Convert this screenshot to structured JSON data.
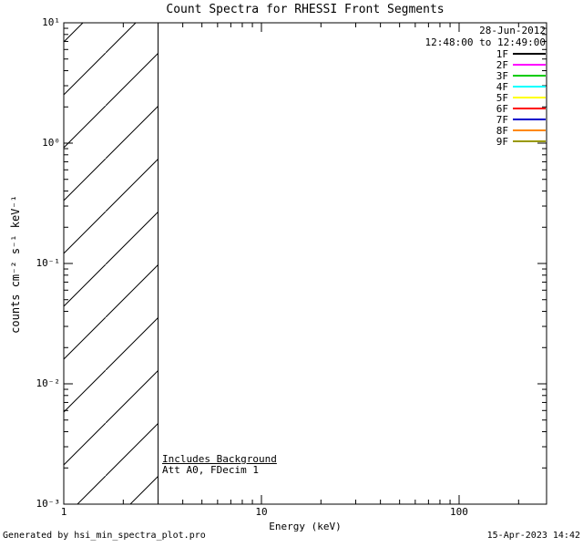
{
  "annotations": {
    "date": "28-Jun-2012",
    "time_range": "12:48:00 to 12:49:00",
    "includes_background": "Includes Background",
    "att_line": "Att A0, FDecim 1"
  },
  "footer": {
    "generated_by": "Generated by hsi_min_spectra_plot.pro",
    "timestamp": "15-Apr-2023 14:42"
  },
  "chart_data": {
    "type": "line",
    "title": "Count Spectra for RHESSI Front Segments",
    "xlabel": "Energy (keV)",
    "ylabel": "counts cm⁻² s⁻¹ keV⁻¹",
    "x_scale": "log",
    "y_scale": "log",
    "xlim": [
      1,
      277
    ],
    "ylim": [
      0.001,
      10
    ],
    "grid": false,
    "x_ticks": [
      {
        "value": 1,
        "label": "1"
      },
      {
        "value": 10,
        "label": "10"
      },
      {
        "value": 100,
        "label": "100"
      }
    ],
    "y_ticks": [
      {
        "value": 10,
        "label": "10¹"
      },
      {
        "value": 1,
        "label": "10⁰"
      },
      {
        "value": 0.1,
        "label": "10⁻¹"
      },
      {
        "value": 0.01,
        "label": "10⁻²"
      },
      {
        "value": 0.001,
        "label": "10⁻³"
      }
    ],
    "series": [],
    "hatched_region": {
      "x_start": 1,
      "x_end": 3,
      "style": "diagonal-line-fill"
    },
    "legend_position": "top-right-inside",
    "legend": [
      {
        "label": "1F",
        "color": "#000000"
      },
      {
        "label": "2F",
        "color": "#ff00ff"
      },
      {
        "label": "3F",
        "color": "#00cc00"
      },
      {
        "label": "4F",
        "color": "#00ffff"
      },
      {
        "label": "5F",
        "color": "#ffff00"
      },
      {
        "label": "6F",
        "color": "#ff0000"
      },
      {
        "label": "7F",
        "color": "#0000cc"
      },
      {
        "label": "8F",
        "color": "#ff8800"
      },
      {
        "label": "9F",
        "color": "#999900"
      }
    ]
  }
}
